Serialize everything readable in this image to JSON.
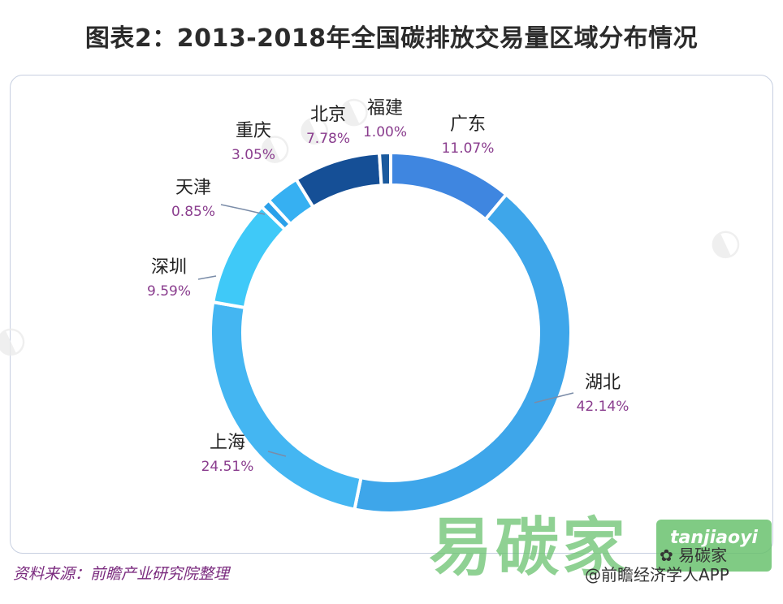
{
  "title": "图表2：2013-2018年全国碳排放交易量区域分布情况",
  "chart_data": {
    "type": "pie",
    "variant": "donut",
    "title": "图表2：2013-2018年全国碳排放交易量区域分布情况",
    "unit": "%",
    "start_angle_deg": 0,
    "direction": "clockwise",
    "slices": [
      {
        "name": "广东",
        "value": 11.07,
        "label": "11.07%",
        "color": "#3f86e0"
      },
      {
        "name": "湖北",
        "value": 42.14,
        "label": "42.14%",
        "color": "#3ea6ea"
      },
      {
        "name": "上海",
        "value": 24.51,
        "label": "24.51%",
        "color": "#44b6f2"
      },
      {
        "name": "深圳",
        "value": 9.59,
        "label": "9.59%",
        "color": "#3fc9f8"
      },
      {
        "name": "天津",
        "value": 0.85,
        "label": "0.85%",
        "color": "#2aa0ea"
      },
      {
        "name": "重庆",
        "value": 3.05,
        "label": "3.05%",
        "color": "#36b0f2"
      },
      {
        "name": "北京",
        "value": 7.78,
        "label": "7.78%",
        "color": "#154f96"
      },
      {
        "name": "福建",
        "value": 1.0,
        "label": "1.00%",
        "color": "#1a5a9e"
      }
    ]
  },
  "source_text": "资料来源：前瞻产业研究院整理",
  "brand": {
    "text": "易碳家",
    "pinyin": "tanjiaoyi",
    "wechat_name": "易碳家"
  },
  "credit_text": "@前瞻经济学人APP",
  "colors": {
    "label_value": "#8a3d8e",
    "label_name": "#222222",
    "leader": "#7a8ca8"
  }
}
